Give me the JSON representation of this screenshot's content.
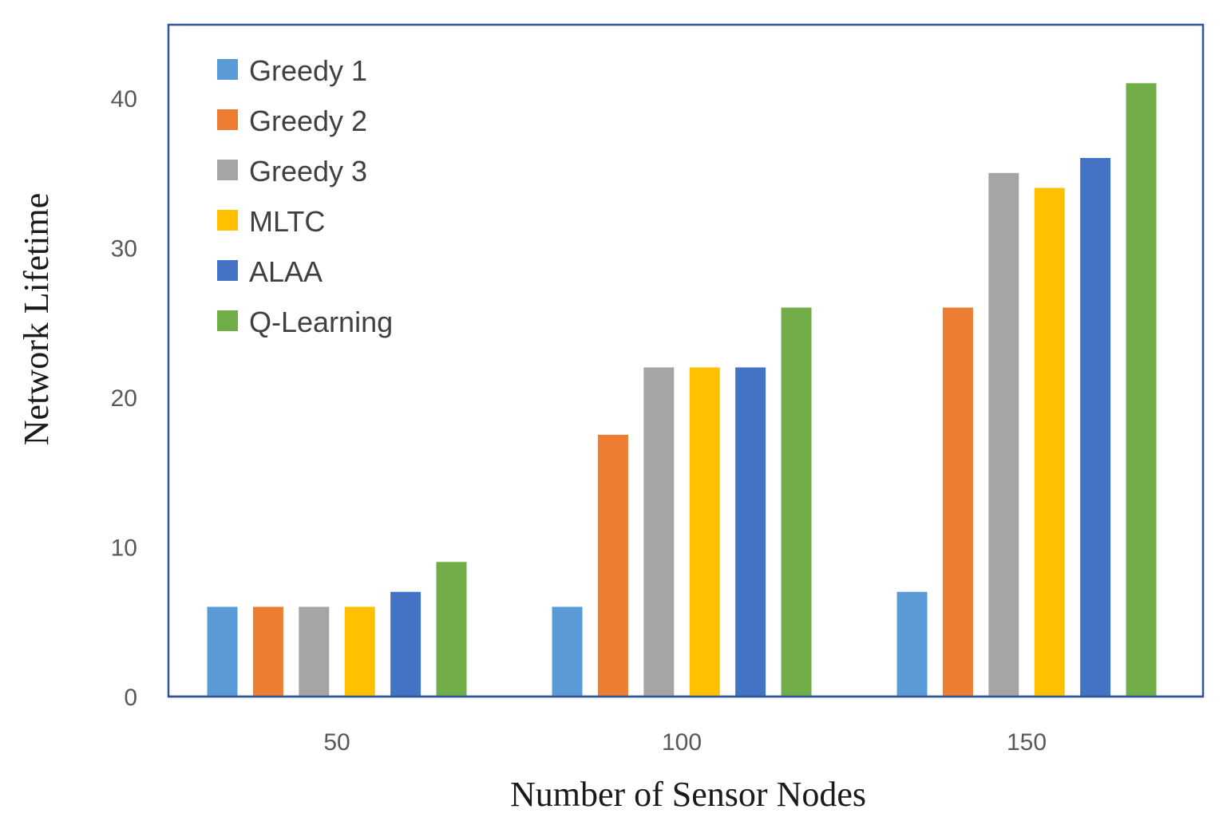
{
  "chart_data": {
    "type": "bar",
    "title": "",
    "xlabel": "Number of Sensor Nodes",
    "ylabel": "Network Lifetime",
    "categories": [
      "50",
      "100",
      "150"
    ],
    "y_ticks": [
      "0",
      "10",
      "20",
      "30",
      "40"
    ],
    "ylim": [
      0,
      45
    ],
    "grid": false,
    "legend_position": "top-left",
    "series": [
      {
        "name": "Greedy 1",
        "color": "#5B9BD5",
        "values": [
          6,
          6,
          7
        ]
      },
      {
        "name": "Greedy 2",
        "color": "#ED7D31",
        "values": [
          6,
          17.5,
          26
        ]
      },
      {
        "name": "Greedy 3",
        "color": "#A5A5A5",
        "values": [
          6,
          22,
          35
        ]
      },
      {
        "name": "MLTC",
        "color": "#FFC000",
        "values": [
          6,
          22,
          34
        ]
      },
      {
        "name": "ALAA",
        "color": "#4472C4",
        "values": [
          7,
          22,
          36
        ]
      },
      {
        "name": "Q-Learning",
        "color": "#70AD47",
        "values": [
          9,
          26,
          41
        ]
      }
    ]
  }
}
